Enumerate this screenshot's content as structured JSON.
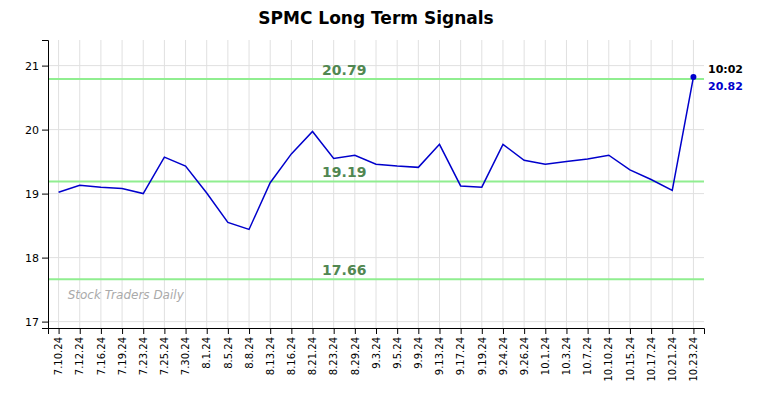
{
  "chart_data": {
    "type": "line",
    "title": "SPMC Long Term Signals",
    "categories": [
      "7.10.24",
      "7.12.24",
      "7.16.24",
      "7.19.24",
      "7.23.24",
      "7.25.24",
      "7.30.24",
      "8.1.24",
      "8.5.24",
      "8.8.24",
      "8.13.24",
      "8.16.24",
      "8.21.24",
      "8.23.24",
      "8.29.24",
      "9.3.24",
      "9.5.24",
      "9.9.24",
      "9.13.24",
      "9.17.24",
      "9.19.24",
      "9.24.24",
      "9.26.24",
      "10.1.24",
      "10.3.24",
      "10.7.24",
      "10.10.24",
      "10.15.24",
      "10.17.24",
      "10.21.24",
      "10.23.24"
    ],
    "values": [
      19.02,
      19.13,
      19.1,
      19.08,
      19.0,
      19.57,
      19.43,
      19.01,
      18.55,
      18.44,
      19.17,
      19.62,
      19.97,
      19.55,
      19.6,
      19.46,
      19.43,
      19.41,
      19.77,
      19.12,
      19.1,
      19.77,
      19.52,
      19.46,
      19.5,
      19.54,
      19.6,
      19.37,
      19.22,
      19.05,
      20.82
    ],
    "color": "#0000cc",
    "ylim": [
      16.9,
      21.4
    ],
    "yticks": [
      17,
      18,
      19,
      20,
      21
    ],
    "grid": true,
    "hlines": [
      {
        "value": 20.79,
        "color": "#90ee90"
      },
      {
        "value": 19.19,
        "color": "#90ee90"
      },
      {
        "value": 17.66,
        "color": "#90ee90"
      }
    ],
    "watermark": "Stock Traders Daily",
    "annotations": [
      {
        "text": "10:02",
        "color": "#000000"
      },
      {
        "text": "20.82",
        "color": "#0000cc"
      }
    ]
  }
}
